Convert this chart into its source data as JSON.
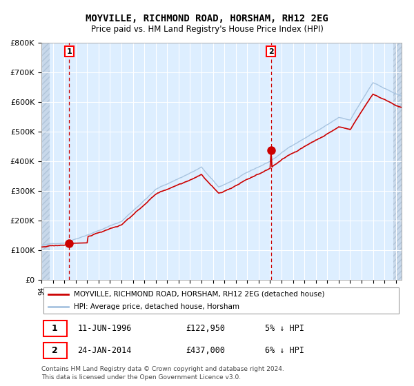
{
  "title": "MOYVILLE, RICHMOND ROAD, HORSHAM, RH12 2EG",
  "subtitle": "Price paid vs. HM Land Registry's House Price Index (HPI)",
  "sale1_year": 1996.44,
  "sale1_price": 122950,
  "sale2_year": 2014.07,
  "sale2_price": 437000,
  "hpi_color": "#a8c4e0",
  "price_color": "#cc0000",
  "marker_color": "#cc0000",
  "dashed_line_color": "#cc0000",
  "plot_bg_color": "#ddeeff",
  "grid_color": "#ffffff",
  "ylim": [
    0,
    800000
  ],
  "ytick_labels": [
    "£0",
    "£100K",
    "£200K",
    "£300K",
    "£400K",
    "£500K",
    "£600K",
    "£700K",
    "£800K"
  ],
  "ytick_values": [
    0,
    100000,
    200000,
    300000,
    400000,
    500000,
    600000,
    700000,
    800000
  ],
  "legend_label1": "MOYVILLE, RICHMOND ROAD, HORSHAM, RH12 2EG (detached house)",
  "legend_label2": "HPI: Average price, detached house, Horsham",
  "footer_text1": "Contains HM Land Registry data © Crown copyright and database right 2024.",
  "footer_text2": "This data is licensed under the Open Government Licence v3.0.",
  "table_row1": [
    "1",
    "11-JUN-1996",
    "£122,950",
    "5% ↓ HPI"
  ],
  "table_row2": [
    "2",
    "24-JAN-2014",
    "£437,000",
    "6% ↓ HPI"
  ],
  "xlim_start": 1994.0,
  "xlim_end": 2025.5
}
